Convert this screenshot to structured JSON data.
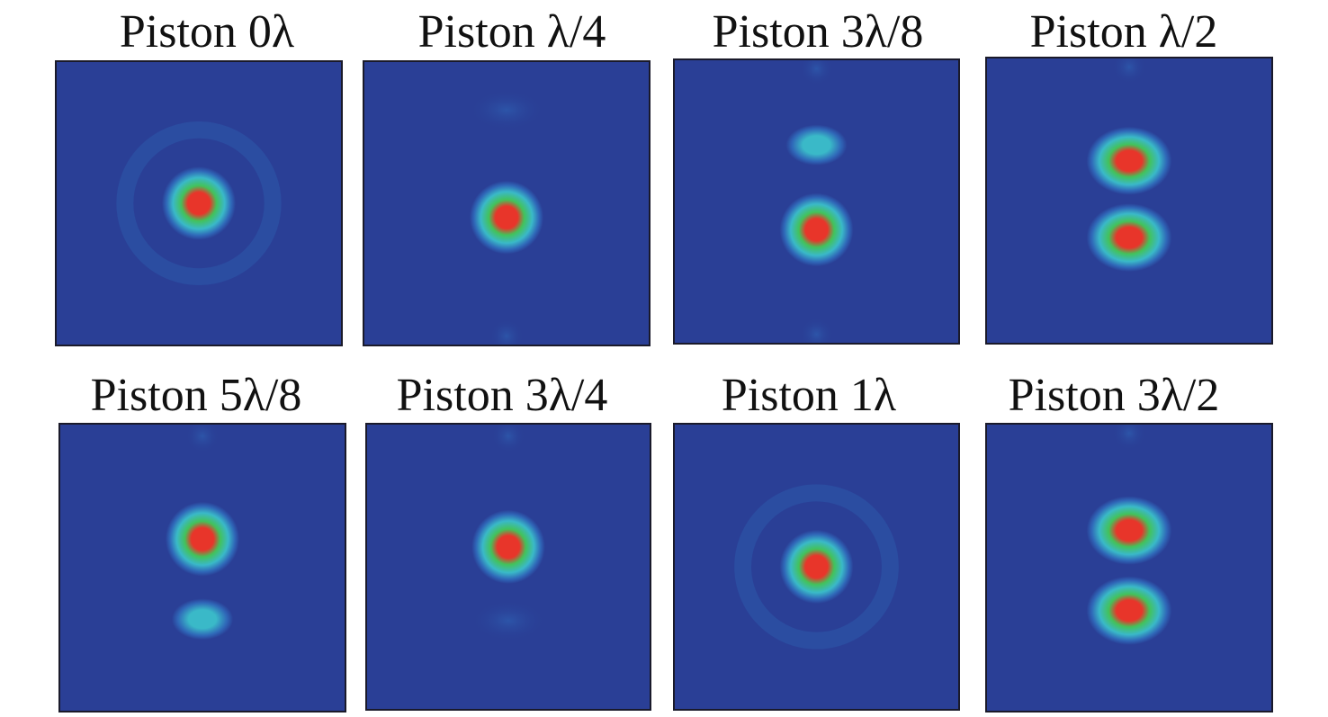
{
  "figure": {
    "panels": [
      {
        "title": "Piston 0λ",
        "lobes": [
          {
            "cy": 0.5,
            "intensity": 1.0,
            "shape": "round"
          }
        ],
        "fringes": [
          {
            "cy": 0.5,
            "type": "ring"
          }
        ]
      },
      {
        "title": "Piston λ/4",
        "lobes": [
          {
            "cy": 0.55,
            "intensity": 1.0,
            "shape": "round"
          },
          {
            "cy": 0.17,
            "intensity": 0.18,
            "shape": "flat"
          }
        ],
        "fringes": [
          {
            "cy": 0.97,
            "type": "faint"
          }
        ]
      },
      {
        "title": "Piston 3λ/8",
        "lobes": [
          {
            "cy": 0.3,
            "intensity": 0.45,
            "shape": "flat"
          },
          {
            "cy": 0.6,
            "intensity": 1.0,
            "shape": "round"
          }
        ],
        "fringes": [
          {
            "cy": 0.97,
            "type": "faint"
          },
          {
            "cy": 0.03,
            "type": "faint"
          }
        ]
      },
      {
        "title": "Piston λ/2",
        "lobes": [
          {
            "cy": 0.36,
            "intensity": 0.95,
            "shape": "wide"
          },
          {
            "cy": 0.63,
            "intensity": 0.95,
            "shape": "wide"
          }
        ],
        "fringes": [
          {
            "cy": 0.03,
            "type": "faint"
          }
        ]
      },
      {
        "title": "Piston 5λ/8",
        "lobes": [
          {
            "cy": 0.4,
            "intensity": 1.0,
            "shape": "round"
          },
          {
            "cy": 0.68,
            "intensity": 0.45,
            "shape": "flat"
          }
        ],
        "fringes": [
          {
            "cy": 0.04,
            "type": "faint"
          }
        ]
      },
      {
        "title": "Piston 3λ/4",
        "lobes": [
          {
            "cy": 0.43,
            "intensity": 1.0,
            "shape": "round"
          },
          {
            "cy": 0.69,
            "intensity": 0.18,
            "shape": "flat"
          }
        ],
        "fringes": [
          {
            "cy": 0.04,
            "type": "faint"
          }
        ]
      },
      {
        "title": "Piston 1λ",
        "lobes": [
          {
            "cy": 0.5,
            "intensity": 1.0,
            "shape": "round"
          }
        ],
        "fringes": [
          {
            "cy": 0.5,
            "type": "ring"
          }
        ]
      },
      {
        "title": "Piston 3λ/2",
        "lobes": [
          {
            "cy": 0.37,
            "intensity": 0.95,
            "shape": "wide"
          },
          {
            "cy": 0.65,
            "intensity": 0.95,
            "shape": "wide"
          }
        ],
        "fringes": [
          {
            "cy": 0.03,
            "type": "faint"
          }
        ]
      }
    ]
  },
  "colors": {
    "background": "#2a3f96",
    "halo": "#2f67b8",
    "cyan": "#3ab9c8",
    "green": "#43c25a",
    "red": "#e8352a"
  }
}
